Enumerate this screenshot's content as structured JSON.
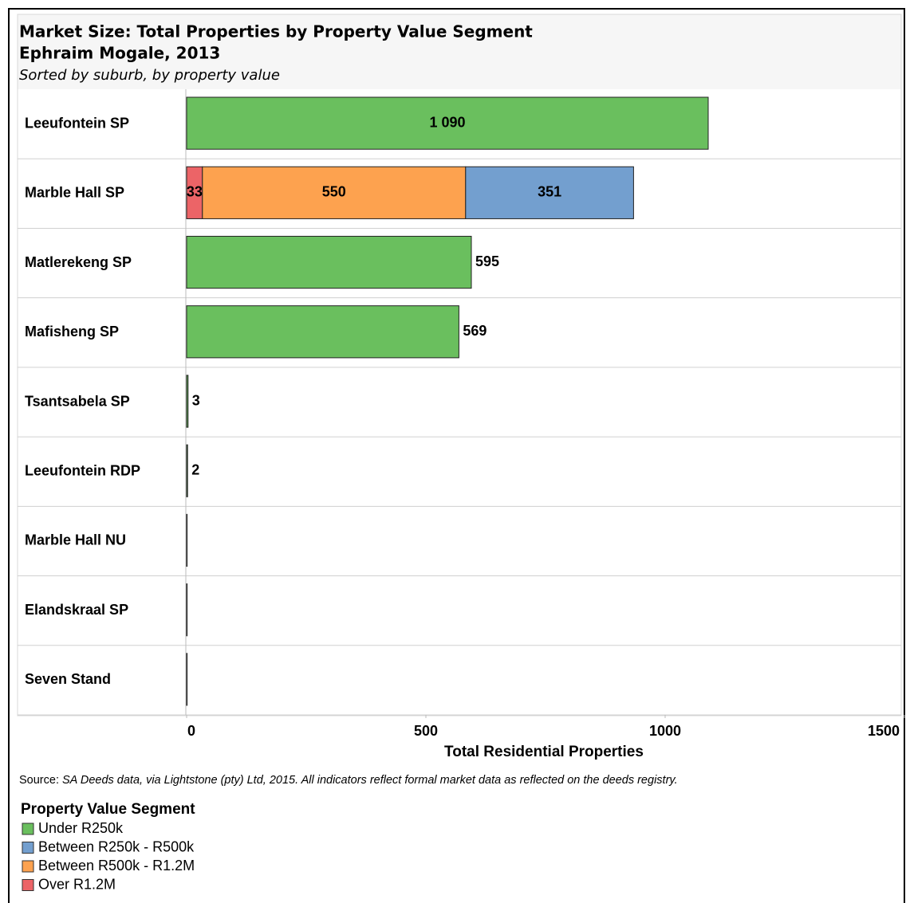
{
  "chart_data": {
    "type": "stacked_bar_horizontal",
    "title": "Market Size: Total Properties by Property Value Segment",
    "subtitle": "Ephraim Mogale, 2013",
    "note": "Sorted by suburb, by property value",
    "categories": [
      "Leeufontein SP",
      "Marble Hall SP",
      "Matlerekeng SP",
      "Mafisheng SP",
      "Tsantsabela SP",
      "Leeufontein RDP",
      "Marble Hall NU",
      "Elandskraal SP",
      "Seven Stand"
    ],
    "series": [
      {
        "name": "Under R250k",
        "color": "#6abf5e",
        "values": [
          1090,
          null,
          595,
          569,
          3,
          2,
          1,
          1,
          1
        ],
        "value_labels": [
          "1 090",
          null,
          "595",
          "569",
          "3",
          "2",
          null,
          null,
          null
        ]
      },
      {
        "name": "Between R250k - R500k",
        "color": "#739fcf",
        "values": [
          null,
          351,
          null,
          null,
          null,
          null,
          null,
          null,
          null
        ],
        "value_labels": [
          null,
          "351",
          null,
          null,
          null,
          null,
          null,
          null,
          null
        ]
      },
      {
        "name": "Between R500k - R1.2M",
        "color": "#fda24f",
        "values": [
          null,
          550,
          null,
          null,
          null,
          null,
          null,
          null,
          null
        ],
        "value_labels": [
          null,
          "550",
          null,
          null,
          null,
          null,
          null,
          null,
          null
        ]
      },
      {
        "name": "Over R1.2M",
        "color": "#ec6467",
        "values": [
          null,
          33,
          null,
          null,
          null,
          null,
          null,
          null,
          null
        ],
        "value_labels": [
          null,
          "33",
          null,
          null,
          null,
          null,
          null,
          null,
          null
        ]
      }
    ],
    "xlabel": "Total Residential Properties",
    "xlim": [
      0,
      1500
    ],
    "xticks": [
      0,
      500,
      1000,
      1500
    ],
    "source_label": "Source:",
    "source": "SA Deeds data, via Lightstone (pty) Ltd, 2015. All indicators reflect formal market data as reflected on the deeds registry.",
    "legend_title": "Property Value Segment"
  }
}
